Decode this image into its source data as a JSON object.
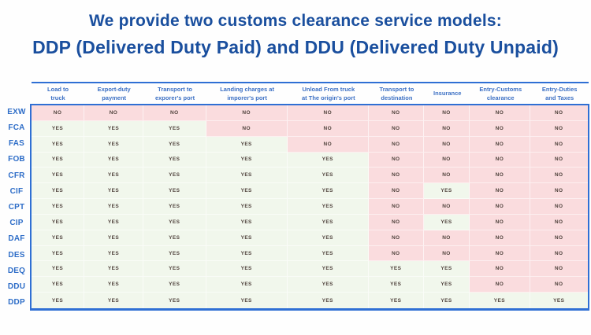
{
  "title": {
    "line1": "We provide two customs clearance service models:",
    "line2": "DDP (Delivered Duty Paid) and DDU (Delivered Duty Unpaid)"
  },
  "colors": {
    "accent": "#2f6fd4",
    "title_text": "#1a4f9e",
    "header_text": "#3c70c4",
    "row_label_text": "#2f6ec8",
    "cell_text": "#51443e",
    "yes_bg": "#f1f7ec",
    "no_bg": "#fadcde"
  },
  "chart_data": {
    "type": "table",
    "title": "We provide two customs clearance service models:",
    "subtitle": "DDP (Delivered Duty Paid) and DDU (Delivered Duty Unpaid)",
    "columns": [
      "Load to\ntruck",
      "Export-duty\npayment",
      "Transport to\nexporer's port",
      "Landing charges at\nimporer's port",
      "Unload From truck\nat The origin's port",
      "Transport to\ndestination",
      "Insurance",
      "Entry-Customs\nclearance",
      "Entry-Duties\nand Taxes"
    ],
    "rows": [
      {
        "label": "EXW",
        "values": [
          "NO",
          "NO",
          "NO",
          "NO",
          "NO",
          "NO",
          "NO",
          "NO",
          "NO"
        ]
      },
      {
        "label": "FCA",
        "values": [
          "YES",
          "YES",
          "YES",
          "NO",
          "NO",
          "NO",
          "NO",
          "NO",
          "NO"
        ]
      },
      {
        "label": "FAS",
        "values": [
          "YES",
          "YES",
          "YES",
          "YES",
          "NO",
          "NO",
          "NO",
          "NO",
          "NO"
        ]
      },
      {
        "label": "FOB",
        "values": [
          "YES",
          "YES",
          "YES",
          "YES",
          "YES",
          "NO",
          "NO",
          "NO",
          "NO"
        ]
      },
      {
        "label": "CFR",
        "values": [
          "YES",
          "YES",
          "YES",
          "YES",
          "YES",
          "NO",
          "NO",
          "NO",
          "NO"
        ]
      },
      {
        "label": "CIF",
        "values": [
          "YES",
          "YES",
          "YES",
          "YES",
          "YES",
          "NO",
          "YES",
          "NO",
          "NO"
        ]
      },
      {
        "label": "CPT",
        "values": [
          "YES",
          "YES",
          "YES",
          "YES",
          "YES",
          "NO",
          "NO",
          "NO",
          "NO"
        ]
      },
      {
        "label": "CIP",
        "values": [
          "YES",
          "YES",
          "YES",
          "YES",
          "YES",
          "NO",
          "YES",
          "NO",
          "NO"
        ]
      },
      {
        "label": "DAF",
        "values": [
          "YES",
          "YES",
          "YES",
          "YES",
          "YES",
          "NO",
          "NO",
          "NO",
          "NO"
        ]
      },
      {
        "label": "DES",
        "values": [
          "YES",
          "YES",
          "YES",
          "YES",
          "YES",
          "NO",
          "NO",
          "NO",
          "NO"
        ]
      },
      {
        "label": "DEQ",
        "values": [
          "YES",
          "YES",
          "YES",
          "YES",
          "YES",
          "YES",
          "YES",
          "NO",
          "NO"
        ]
      },
      {
        "label": "DDU",
        "values": [
          "YES",
          "YES",
          "YES",
          "YES",
          "YES",
          "YES",
          "YES",
          "NO",
          "NO"
        ]
      },
      {
        "label": "DDP",
        "values": [
          "YES",
          "YES",
          "YES",
          "YES",
          "YES",
          "YES",
          "YES",
          "YES",
          "YES"
        ]
      }
    ]
  }
}
